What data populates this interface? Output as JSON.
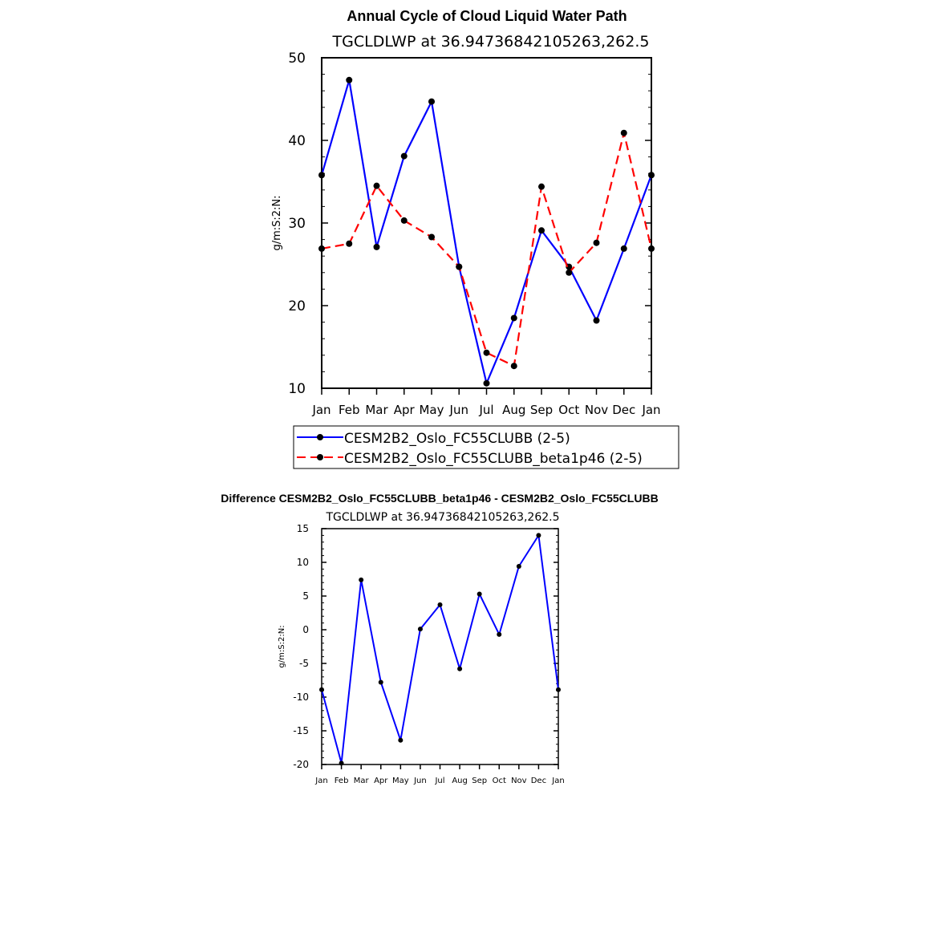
{
  "chart_data": [
    {
      "type": "line",
      "title": "Annual Cycle of Cloud Liquid Water Path",
      "subtitle": "TGCLDLWP at 36.94736842105263,262.5",
      "xlabel": "",
      "ylabel": "g/m:S:2:N:",
      "categories": [
        "Jan",
        "Feb",
        "Mar",
        "Apr",
        "May",
        "Jun",
        "Jul",
        "Aug",
        "Sep",
        "Oct",
        "Nov",
        "Dec",
        "Jan"
      ],
      "ylim": [
        10,
        50
      ],
      "yticks": [
        10,
        20,
        30,
        40,
        50
      ],
      "series": [
        {
          "name": "CESM2B2_Oslo_FC55CLUBB (2-5)",
          "color": "#0000ff",
          "dash": "solid",
          "values": [
            35.8,
            47.3,
            27.1,
            38.1,
            44.7,
            24.7,
            10.6,
            18.5,
            29.1,
            24.7,
            18.2,
            26.9,
            35.8
          ]
        },
        {
          "name": "CESM2B2_Oslo_FC55CLUBB_beta1p46 (2-5)",
          "color": "#ff0000",
          "dash": "dashed",
          "values": [
            26.9,
            27.5,
            34.5,
            30.3,
            28.3,
            24.7,
            14.3,
            12.7,
            34.4,
            24.0,
            27.6,
            40.9,
            26.9
          ]
        }
      ],
      "legend": "bottom"
    },
    {
      "type": "line",
      "title": "Difference CESM2B2_Oslo_FC55CLUBB_beta1p46 - CESM2B2_Oslo_FC55CLUBB",
      "subtitle": "TGCLDLWP at 36.94736842105263,262.5",
      "xlabel": "",
      "ylabel": "g/m:S:2:N:",
      "categories": [
        "Jan",
        "Feb",
        "Mar",
        "Apr",
        "May",
        "Jun",
        "Jul",
        "Aug",
        "Sep",
        "Oct",
        "Nov",
        "Dec",
        "Jan"
      ],
      "ylim": [
        -20,
        15
      ],
      "yticks": [
        -20,
        -15,
        -10,
        -5,
        0,
        5,
        10,
        15
      ],
      "series": [
        {
          "name": "Difference",
          "color": "#0000ff",
          "dash": "solid",
          "values": [
            -8.9,
            -19.8,
            7.4,
            -7.8,
            -16.4,
            0.1,
            3.7,
            -5.8,
            5.3,
            -0.7,
            9.4,
            14.0,
            -8.9
          ]
        }
      ]
    }
  ]
}
